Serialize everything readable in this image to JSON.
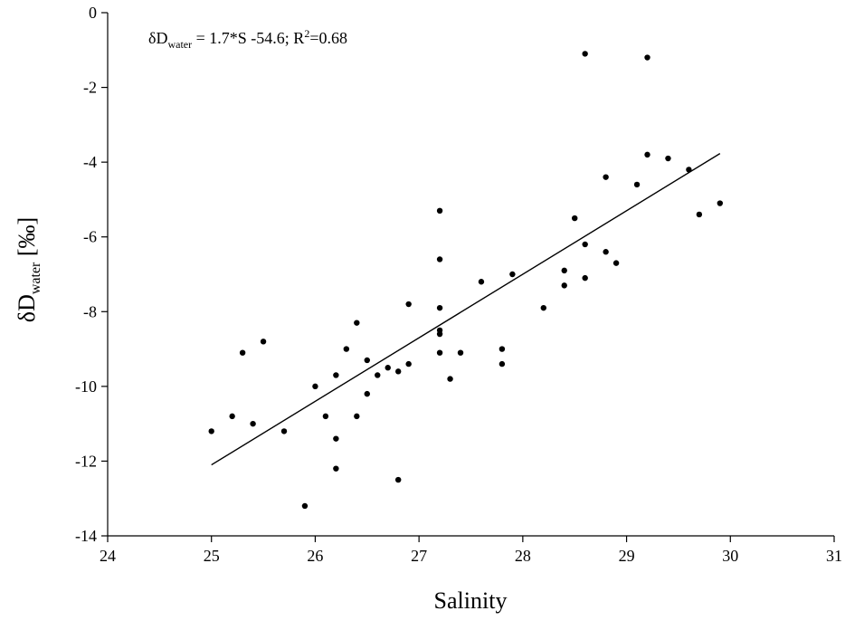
{
  "chart_data": {
    "type": "scatter",
    "xlabel": "Salinity",
    "ylabel": {
      "prefix": "δD",
      "sub": "water",
      "suffix": " [‰]"
    },
    "xlim": [
      24,
      31
    ],
    "ylim": [
      -14,
      0
    ],
    "xticks": [
      24,
      25,
      26,
      27,
      28,
      29,
      30,
      31
    ],
    "yticks": [
      0,
      -2,
      -4,
      -6,
      -8,
      -10,
      -12,
      -14
    ],
    "grid": false,
    "annotation": {
      "prefix": "δD",
      "sub": "water",
      "middle": " = 1.7*S -54.6; R",
      "sup": "2",
      "suffix": "=0.68"
    },
    "fit_line": {
      "slope": 1.7,
      "intercept": -54.6,
      "x_range": [
        25.0,
        29.9
      ]
    },
    "series": [
      {
        "points": [
          [
            25.0,
            -11.2
          ],
          [
            25.2,
            -10.8
          ],
          [
            25.3,
            -9.1
          ],
          [
            25.4,
            -11.0
          ],
          [
            25.5,
            -8.8
          ],
          [
            25.7,
            -11.2
          ],
          [
            25.9,
            -13.2
          ],
          [
            26.0,
            -10.0
          ],
          [
            26.1,
            -10.8
          ],
          [
            26.2,
            -9.7
          ],
          [
            26.2,
            -11.4
          ],
          [
            26.2,
            -12.2
          ],
          [
            26.3,
            -9.0
          ],
          [
            26.4,
            -8.3
          ],
          [
            26.4,
            -10.8
          ],
          [
            26.5,
            -9.3
          ],
          [
            26.5,
            -10.2
          ],
          [
            26.6,
            -9.7
          ],
          [
            26.7,
            -9.5
          ],
          [
            26.8,
            -9.6
          ],
          [
            26.8,
            -12.5
          ],
          [
            26.9,
            -7.8
          ],
          [
            26.9,
            -9.4
          ],
          [
            27.2,
            -5.3
          ],
          [
            27.2,
            -6.6
          ],
          [
            27.2,
            -7.9
          ],
          [
            27.2,
            -8.5
          ],
          [
            27.2,
            -8.6
          ],
          [
            27.2,
            -9.1
          ],
          [
            27.3,
            -9.8
          ],
          [
            27.4,
            -9.1
          ],
          [
            27.6,
            -7.2
          ],
          [
            27.8,
            -9.0
          ],
          [
            27.8,
            -9.4
          ],
          [
            27.9,
            -7.0
          ],
          [
            28.2,
            -7.9
          ],
          [
            28.4,
            -6.9
          ],
          [
            28.4,
            -7.3
          ],
          [
            28.5,
            -5.5
          ],
          [
            28.6,
            -1.1
          ],
          [
            28.6,
            -6.2
          ],
          [
            28.6,
            -7.1
          ],
          [
            28.8,
            -4.4
          ],
          [
            28.8,
            -6.4
          ],
          [
            28.9,
            -6.7
          ],
          [
            29.1,
            -4.6
          ],
          [
            29.2,
            -1.2
          ],
          [
            29.2,
            -3.8
          ],
          [
            29.4,
            -3.9
          ],
          [
            29.6,
            -4.2
          ],
          [
            29.7,
            -5.4
          ],
          [
            29.9,
            -5.1
          ]
        ]
      }
    ]
  }
}
